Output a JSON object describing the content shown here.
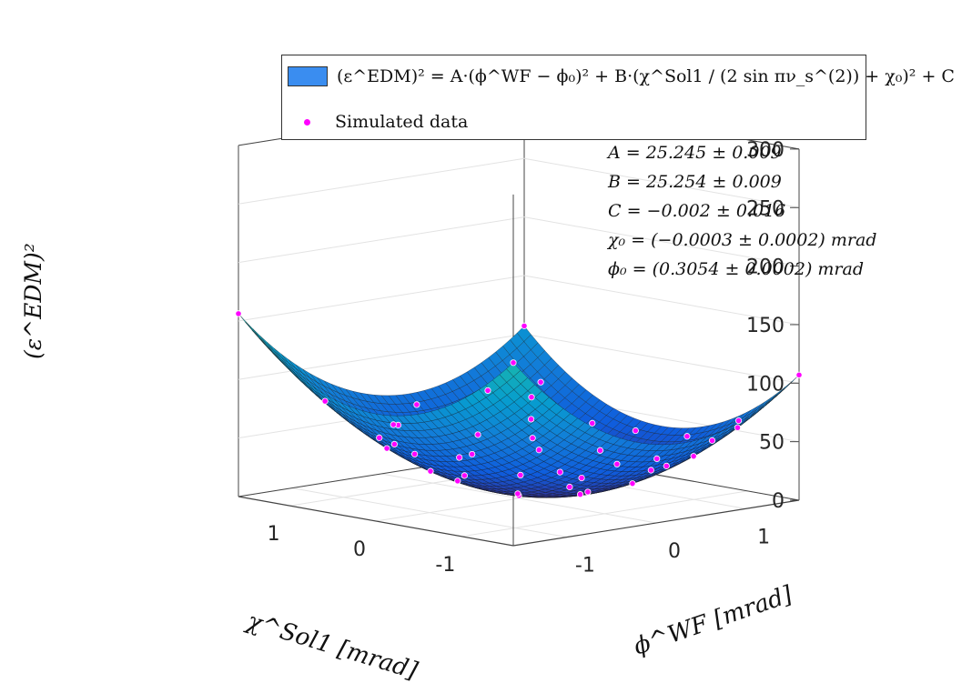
{
  "chart_data": {
    "type": "surface",
    "surface_model": "(eps_EDM)^2 = A*(phi_WF - phi0)^2 + B*(chi_Sol1/(2 sin pi nu_s) + chi0)^2 + C",
    "parameters": {
      "A": 25.245,
      "B": 25.254,
      "C": -0.002,
      "chi0": -0.0003,
      "phi0": 0.3054
    },
    "x_range_chi": [
      -1.6,
      1.6
    ],
    "y_range_phi": [
      -1.6,
      1.6
    ],
    "zlim": [
      0,
      300
    ],
    "x_ticks": [
      "-1",
      "0",
      "1"
    ],
    "y_ticks": [
      "-1",
      "0",
      "1"
    ],
    "z_ticks": [
      "0",
      "50",
      "100",
      "150",
      "200",
      "250",
      "300"
    ],
    "x_ticks_values": [
      -1,
      0,
      1
    ],
    "y_ticks_values": [
      -1,
      0,
      1
    ],
    "z_ticks_values": [
      0,
      50,
      100,
      150,
      200,
      250,
      300
    ],
    "xlabel": "χ^Sol1 [mrad]",
    "ylabel": "ϕ^WF [mrad]",
    "zlabel": "(ε^EDM)²",
    "colormap": "parula",
    "grid": true,
    "legend_placement": "top",
    "legend": [
      {
        "label": "(ε^EDM)² = A·(ϕ^WF − ϕ₀)² + B·(χ^Sol1 / (2 sin πν_s^(2)) + χ₀)² + C",
        "kind": "surface"
      },
      {
        "label": "Simulated data",
        "kind": "marker"
      }
    ],
    "fit_annotations": [
      "A = 25.245 ± 0.009",
      "B = 25.254 ± 0.009",
      "C = −0.002 ± 0.016",
      "χ₀ = (−0.0003 ± 0.0002) mrad",
      "ϕ₀ = (0.3054 ± 0.0002) mrad"
    ],
    "simulated_data_points": [
      {
        "chi": -1.6,
        "phi": 1.6
      },
      {
        "chi": 1.6,
        "phi": -1.6
      },
      {
        "chi": -1.6,
        "phi": -1.6
      },
      {
        "chi": 1.6,
        "phi": 1.6
      },
      {
        "chi": -1.3,
        "phi": 1.2
      },
      {
        "chi": -1.1,
        "phi": 0.9
      },
      {
        "chi": -0.9,
        "phi": 1.3
      },
      {
        "chi": -0.7,
        "phi": 0.6
      },
      {
        "chi": -0.5,
        "phi": 1.0
      },
      {
        "chi": -0.3,
        "phi": 0.4
      },
      {
        "chi": 0.1,
        "phi": 0.8
      },
      {
        "chi": 0.3,
        "phi": 1.2
      },
      {
        "chi": 0.5,
        "phi": 0.5
      },
      {
        "chi": 0.7,
        "phi": 0.9
      },
      {
        "chi": 0.9,
        "phi": 0.2
      },
      {
        "chi": 1.1,
        "phi": 0.6
      },
      {
        "chi": 1.3,
        "phi": -0.1
      },
      {
        "chi": 1.0,
        "phi": -0.6
      },
      {
        "chi": 0.6,
        "phi": -0.9
      },
      {
        "chi": 0.2,
        "phi": -1.2
      },
      {
        "chi": -0.2,
        "phi": -0.8
      },
      {
        "chi": -0.6,
        "phi": -1.1
      },
      {
        "chi": -1.0,
        "phi": -0.5
      },
      {
        "chi": -1.2,
        "phi": -1.0
      },
      {
        "chi": -1.4,
        "phi": 0.2
      },
      {
        "chi": -0.8,
        "phi": -0.2
      },
      {
        "chi": 0.0,
        "phi": 0.0
      },
      {
        "chi": 0.4,
        "phi": -0.3
      },
      {
        "chi": 0.8,
        "phi": -1.4
      },
      {
        "chi": 1.4,
        "phi": 1.0
      },
      {
        "chi": -0.4,
        "phi": 1.5
      },
      {
        "chi": 0.2,
        "phi": 1.5
      },
      {
        "chi": -1.5,
        "phi": -1.3
      },
      {
        "chi": 1.2,
        "phi": 1.4
      },
      {
        "chi": -0.1,
        "phi": -1.5
      },
      {
        "chi": 0.9,
        "phi": -0.3
      },
      {
        "chi": -0.7,
        "phi": 0.1
      },
      {
        "chi": 0.6,
        "phi": 1.4
      },
      {
        "chi": -1.2,
        "phi": 0.5
      },
      {
        "chi": 1.5,
        "phi": 0.3
      },
      {
        "chi": 0.3,
        "phi": -0.7
      },
      {
        "chi": -0.3,
        "phi": -0.3
      },
      {
        "chi": 0.0,
        "phi": 1.1
      },
      {
        "chi": -1.0,
        "phi": 1.5
      },
      {
        "chi": 1.0,
        "phi": 1.1
      }
    ]
  }
}
